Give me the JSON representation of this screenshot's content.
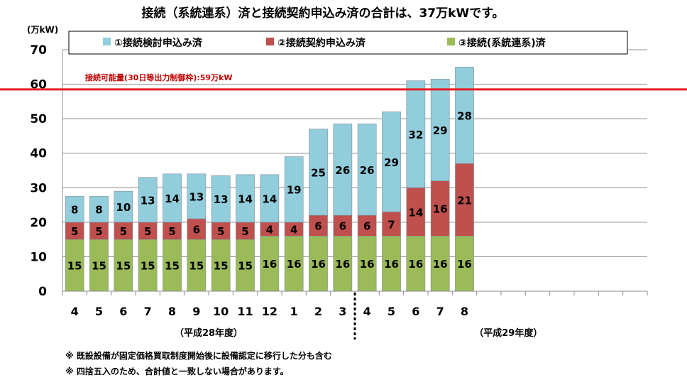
{
  "chart_data": {
    "type": "bar",
    "stacked": true,
    "title": "接続（系統連系）済と接続契約申込み済の合計は、37万kWです。",
    "ylabel": "(万kW)",
    "ylim": [
      0,
      70
    ],
    "yticks": [
      0,
      10,
      20,
      30,
      40,
      50,
      60,
      70
    ],
    "grid": true,
    "legend_position": "top",
    "categories": [
      "4",
      "5",
      "6",
      "7",
      "8",
      "9",
      "10",
      "11",
      "12",
      "1",
      "2",
      "3",
      "4",
      "5",
      "6",
      "7",
      "8"
    ],
    "empty_slots_after_data": 7,
    "fiscal_year_labels": [
      {
        "label": "（平成28年度）",
        "from": 0,
        "to": 11
      },
      {
        "label": "（平成29年度）",
        "from": 12,
        "to": 16
      }
    ],
    "fiscal_year_divider_after_index": 11,
    "series": [
      {
        "name": "③接続(系統連系)済",
        "color": "#9bbb59",
        "values": [
          15,
          15,
          15,
          15,
          15,
          15,
          15,
          15,
          16,
          16,
          16,
          16,
          16,
          16,
          16,
          16,
          16
        ]
      },
      {
        "name": "②接続契約申込み済",
        "color": "#c0504d",
        "values": [
          5,
          5,
          5,
          5,
          5,
          6,
          5,
          5,
          4,
          4,
          6,
          6,
          6,
          7,
          14,
          16,
          21
        ]
      },
      {
        "name": "①接続検討申込み済",
        "color": "#92cddc",
        "values": [
          8,
          8,
          10,
          13,
          14,
          13,
          13,
          14,
          14,
          19,
          25,
          26,
          26,
          29,
          32,
          29,
          28
        ]
      }
    ],
    "legend_order": [
      "①接続検討申込み済",
      "②接続契約申込み済",
      "③接続(系統連系)済"
    ],
    "stack_totals": [
      27.5,
      27.5,
      29,
      33,
      34,
      34,
      33.5,
      33.8,
      33.8,
      39,
      47,
      48.5,
      48.5,
      52,
      61,
      61.5,
      65
    ],
    "reference_line": {
      "value": 58.5,
      "label": "接続可能量(30日等出力制御枠):59万kW",
      "color": "#e51c23"
    }
  },
  "notes": [
    "※ 既設設備が固定価格買取制度開始後に設備認定に移行した分も含む",
    "※ 四捨五入のため、合計値と一致しない場合があります。"
  ]
}
